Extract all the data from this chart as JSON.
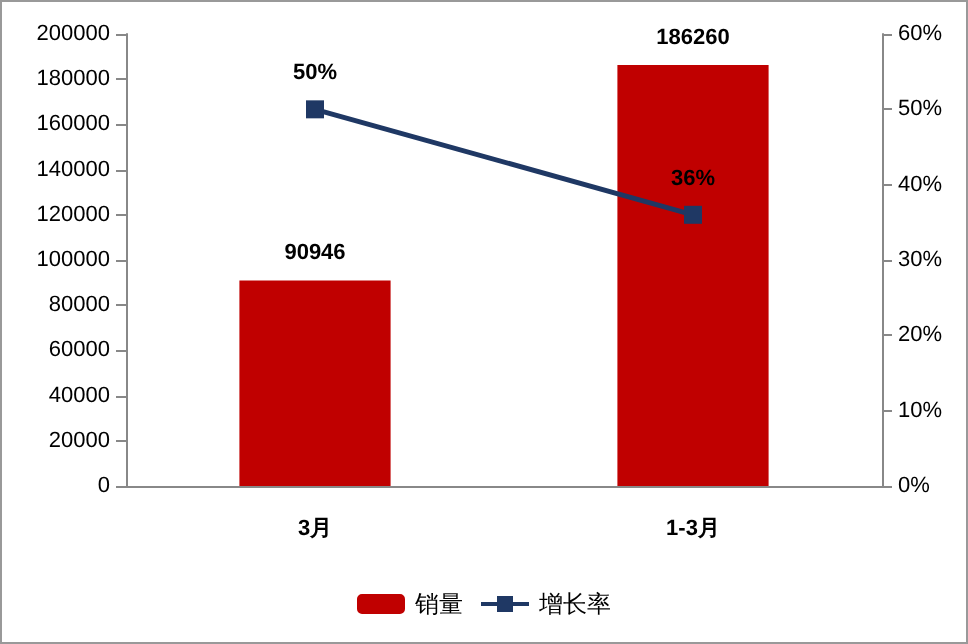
{
  "chart_data": {
    "type": "bar",
    "categories": [
      "3月",
      "1-3月"
    ],
    "series": [
      {
        "name": "销量",
        "color": "#c00000",
        "values": [
          90946,
          186260
        ],
        "value_labels": [
          "90946",
          "186260"
        ]
      },
      {
        "name": "增长率",
        "type": "line",
        "axis": "y2",
        "color": "#1f3864",
        "values": [
          50,
          36
        ],
        "value_labels": [
          "50%",
          "36%"
        ],
        "marker": "square"
      }
    ],
    "ylim": [
      0,
      200000
    ],
    "yticks": [
      0,
      20000,
      40000,
      60000,
      80000,
      100000,
      120000,
      140000,
      160000,
      180000,
      200000
    ],
    "y2lim": [
      0,
      60
    ],
    "y2ticks": [
      {
        "value": 0,
        "label": "0%"
      },
      {
        "value": 10,
        "label": "10%"
      },
      {
        "value": 20,
        "label": "20%"
      },
      {
        "value": 30,
        "label": "30%"
      },
      {
        "value": 40,
        "label": "40%"
      },
      {
        "value": 50,
        "label": "50%"
      },
      {
        "value": 60,
        "label": "60%"
      }
    ],
    "grid": false,
    "legend": "bottom"
  }
}
